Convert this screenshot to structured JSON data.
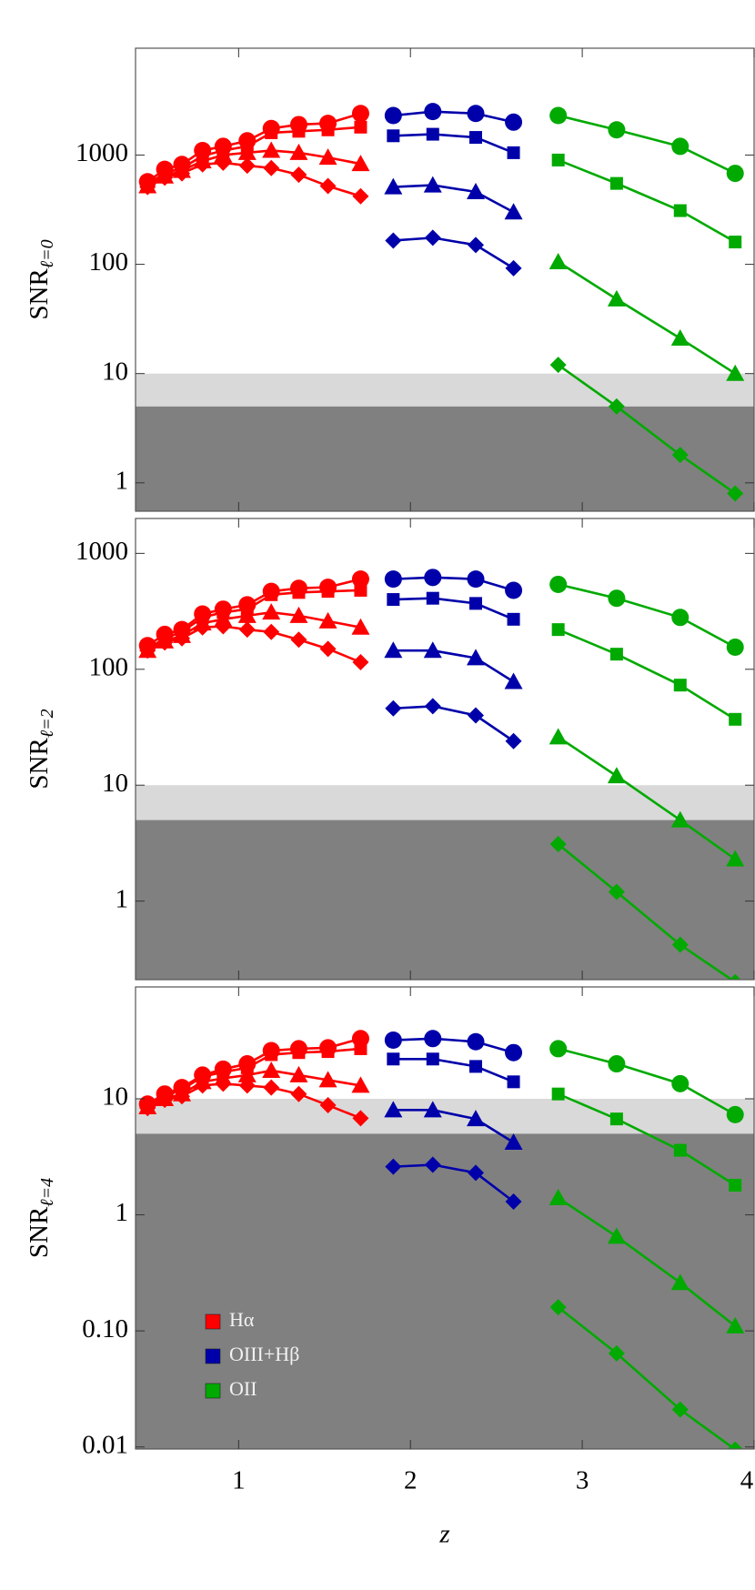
{
  "chart_data": [
    {
      "type": "line",
      "ylog": true,
      "ylabel": "SNR",
      "ylabel_subscript": "ℓ=0",
      "xlim": [
        0.4,
        4.0
      ],
      "xticks": [
        1,
        2,
        3,
        4
      ],
      "ylim": [
        0.55,
        9500
      ],
      "yticks": [
        1,
        10,
        100,
        1000
      ],
      "bands": [
        {
          "range": [
            5,
            10
          ],
          "color": "#d9d9d9"
        },
        {
          "range": [
            0,
            5
          ],
          "color": "#808080"
        }
      ],
      "series": [
        {
          "color": "#ff0000",
          "marker": "circle",
          "x": [
            0.47,
            0.57,
            0.67,
            0.79,
            0.91,
            1.05,
            1.19,
            1.35,
            1.52,
            1.71
          ],
          "values": [
            570,
            740,
            820,
            1100,
            1200,
            1350,
            1750,
            1900,
            1950,
            2400
          ]
        },
        {
          "color": "#ff0000",
          "marker": "square",
          "x": [
            0.47,
            0.57,
            0.67,
            0.79,
            0.91,
            1.05,
            1.19,
            1.35,
            1.52,
            1.71
          ],
          "values": [
            540,
            680,
            760,
            980,
            1100,
            1200,
            1600,
            1650,
            1700,
            1800
          ]
        },
        {
          "color": "#ff0000",
          "marker": "triangle",
          "x": [
            0.47,
            0.57,
            0.67,
            0.79,
            0.91,
            1.05,
            1.19,
            1.35,
            1.52,
            1.71
          ],
          "values": [
            520,
            640,
            720,
            880,
            1000,
            1050,
            1100,
            1050,
            950,
            830
          ]
        },
        {
          "color": "#ff0000",
          "marker": "diamond",
          "x": [
            0.47,
            0.57,
            0.67,
            0.79,
            0.91,
            1.05,
            1.19,
            1.35,
            1.52,
            1.71
          ],
          "values": [
            510,
            620,
            680,
            820,
            850,
            800,
            760,
            660,
            520,
            420
          ]
        },
        {
          "color": "#0000aa",
          "marker": "circle",
          "x": [
            1.9,
            2.13,
            2.38,
            2.6
          ],
          "values": [
            2300,
            2500,
            2400,
            2000
          ]
        },
        {
          "color": "#0000aa",
          "marker": "square",
          "x": [
            1.9,
            2.13,
            2.38,
            2.6
          ],
          "values": [
            1500,
            1550,
            1450,
            1050
          ]
        },
        {
          "color": "#0000aa",
          "marker": "triangle",
          "x": [
            1.9,
            2.13,
            2.38,
            2.6
          ],
          "values": [
            510,
            530,
            460,
            300
          ]
        },
        {
          "color": "#0000aa",
          "marker": "diamond",
          "x": [
            1.9,
            2.13,
            2.38,
            2.6
          ],
          "values": [
            165,
            175,
            150,
            92
          ]
        },
        {
          "color": "#00aa00",
          "marker": "circle",
          "x": [
            2.86,
            3.2,
            3.57,
            3.89
          ],
          "values": [
            2300,
            1700,
            1200,
            680
          ]
        },
        {
          "color": "#00aa00",
          "marker": "square",
          "x": [
            2.86,
            3.2,
            3.57,
            3.89
          ],
          "values": [
            900,
            550,
            310,
            160
          ]
        },
        {
          "color": "#00aa00",
          "marker": "triangle",
          "x": [
            2.86,
            3.2,
            3.57,
            3.89
          ],
          "values": [
            105,
            48,
            21,
            10
          ]
        },
        {
          "color": "#00aa00",
          "marker": "diamond",
          "x": [
            2.86,
            3.2,
            3.57,
            3.89
          ],
          "values": [
            12,
            5,
            1.8,
            0.8
          ]
        }
      ]
    },
    {
      "type": "line",
      "ylog": true,
      "ylabel": "SNR",
      "ylabel_subscript": "ℓ=2",
      "xlim": [
        0.4,
        4.0
      ],
      "xticks": [
        1,
        2,
        3,
        4
      ],
      "ylim": [
        0.21,
        2000
      ],
      "yticks": [
        1,
        10,
        100,
        1000
      ],
      "bands": [
        {
          "range": [
            5,
            10
          ],
          "color": "#d9d9d9"
        },
        {
          "range": [
            0,
            5
          ],
          "color": "#808080"
        }
      ],
      "series": [
        {
          "color": "#ff0000",
          "marker": "circle",
          "x": [
            0.47,
            0.57,
            0.67,
            0.79,
            0.91,
            1.05,
            1.19,
            1.35,
            1.52,
            1.71
          ],
          "values": [
            160,
            200,
            220,
            300,
            330,
            360,
            470,
            500,
            510,
            600
          ]
        },
        {
          "color": "#ff0000",
          "marker": "square",
          "x": [
            0.47,
            0.57,
            0.67,
            0.79,
            0.91,
            1.05,
            1.19,
            1.35,
            1.52,
            1.71
          ],
          "values": [
            150,
            185,
            210,
            280,
            310,
            330,
            440,
            460,
            470,
            480
          ]
        },
        {
          "color": "#ff0000",
          "marker": "triangle",
          "x": [
            0.47,
            0.57,
            0.67,
            0.79,
            0.91,
            1.05,
            1.19,
            1.35,
            1.52,
            1.71
          ],
          "values": [
            145,
            175,
            195,
            250,
            270,
            290,
            310,
            290,
            260,
            230
          ]
        },
        {
          "color": "#ff0000",
          "marker": "diamond",
          "x": [
            0.47,
            0.57,
            0.67,
            0.79,
            0.91,
            1.05,
            1.19,
            1.35,
            1.52,
            1.71
          ],
          "values": [
            145,
            170,
            185,
            230,
            235,
            220,
            210,
            180,
            150,
            115
          ]
        },
        {
          "color": "#0000aa",
          "marker": "circle",
          "x": [
            1.9,
            2.13,
            2.38,
            2.6
          ],
          "values": [
            600,
            620,
            600,
            480
          ]
        },
        {
          "color": "#0000aa",
          "marker": "square",
          "x": [
            1.9,
            2.13,
            2.38,
            2.6
          ],
          "values": [
            400,
            410,
            370,
            270
          ]
        },
        {
          "color": "#0000aa",
          "marker": "triangle",
          "x": [
            1.9,
            2.13,
            2.38,
            2.6
          ],
          "values": [
            145,
            145,
            125,
            78
          ]
        },
        {
          "color": "#0000aa",
          "marker": "diamond",
          "x": [
            1.9,
            2.13,
            2.38,
            2.6
          ],
          "values": [
            46,
            48,
            40,
            24
          ]
        },
        {
          "color": "#00aa00",
          "marker": "circle",
          "x": [
            2.86,
            3.2,
            3.57,
            3.89
          ],
          "values": [
            540,
            410,
            280,
            155
          ]
        },
        {
          "color": "#00aa00",
          "marker": "square",
          "x": [
            2.86,
            3.2,
            3.57,
            3.89
          ],
          "values": [
            220,
            135,
            73,
            37
          ]
        },
        {
          "color": "#00aa00",
          "marker": "triangle",
          "x": [
            2.86,
            3.2,
            3.57,
            3.89
          ],
          "values": [
            26,
            12,
            5,
            2.3
          ]
        },
        {
          "color": "#00aa00",
          "marker": "diamond",
          "x": [
            2.86,
            3.2,
            3.57,
            3.89
          ],
          "values": [
            3.1,
            1.2,
            0.42,
            0.2
          ]
        }
      ]
    },
    {
      "type": "line",
      "ylog": true,
      "ylabel": "SNR",
      "ylabel_subscript": "ℓ=4",
      "xlabel": "z",
      "xlim": [
        0.4,
        4.0
      ],
      "xticks": [
        1,
        2,
        3,
        4
      ],
      "ylim": [
        0.0096,
        92
      ],
      "yticks": [
        {
          "value": 0.01,
          "label": "0.01"
        },
        {
          "value": 0.1,
          "label": "0.10"
        },
        1,
        10
      ],
      "bands": [
        {
          "range": [
            5,
            10
          ],
          "color": "#d9d9d9"
        },
        {
          "range": [
            0,
            5
          ],
          "color": "#808080"
        }
      ],
      "legend": [
        {
          "name": "Hα",
          "color": "#ff0000"
        },
        {
          "name": "OIII+Hβ",
          "color": "#0000aa"
        },
        {
          "name": "OII",
          "color": "#00aa00"
        }
      ],
      "series": [
        {
          "color": "#ff0000",
          "marker": "circle",
          "x": [
            0.47,
            0.57,
            0.67,
            0.79,
            0.91,
            1.05,
            1.19,
            1.35,
            1.52,
            1.71
          ],
          "values": [
            9,
            11,
            12.5,
            16,
            18,
            20,
            26,
            27,
            27.5,
            33
          ]
        },
        {
          "color": "#ff0000",
          "marker": "square",
          "x": [
            0.47,
            0.57,
            0.67,
            0.79,
            0.91,
            1.05,
            1.19,
            1.35,
            1.52,
            1.71
          ],
          "values": [
            8.7,
            10.5,
            12,
            15.5,
            17,
            18.5,
            24,
            25,
            25.5,
            27
          ]
        },
        {
          "color": "#ff0000",
          "marker": "triangle",
          "x": [
            0.47,
            0.57,
            0.67,
            0.79,
            0.91,
            1.05,
            1.19,
            1.35,
            1.52,
            1.71
          ],
          "values": [
            8.5,
            10,
            11,
            14,
            15,
            16,
            17.5,
            16,
            14.5,
            13
          ]
        },
        {
          "color": "#ff0000",
          "marker": "diamond",
          "x": [
            0.47,
            0.57,
            0.67,
            0.79,
            0.91,
            1.05,
            1.19,
            1.35,
            1.52,
            1.71
          ],
          "values": [
            8.3,
            9.8,
            10.5,
            13,
            13.5,
            13,
            12.5,
            11,
            8.8,
            6.8
          ]
        },
        {
          "color": "#0000aa",
          "marker": "circle",
          "x": [
            1.9,
            2.13,
            2.38,
            2.6
          ],
          "values": [
            32,
            33,
            31,
            25
          ]
        },
        {
          "color": "#0000aa",
          "marker": "square",
          "x": [
            1.9,
            2.13,
            2.38,
            2.6
          ],
          "values": [
            22,
            22,
            19,
            14
          ]
        },
        {
          "color": "#0000aa",
          "marker": "triangle",
          "x": [
            1.9,
            2.13,
            2.38,
            2.6
          ],
          "values": [
            8,
            8,
            6.7,
            4.2
          ]
        },
        {
          "color": "#0000aa",
          "marker": "diamond",
          "x": [
            1.9,
            2.13,
            2.38,
            2.6
          ],
          "values": [
            2.6,
            2.7,
            2.3,
            1.3
          ]
        },
        {
          "color": "#00aa00",
          "marker": "circle",
          "x": [
            2.86,
            3.2,
            3.57,
            3.89
          ],
          "values": [
            27,
            20,
            13.5,
            7.3
          ]
        },
        {
          "color": "#00aa00",
          "marker": "square",
          "x": [
            2.86,
            3.2,
            3.57,
            3.89
          ],
          "values": [
            11,
            6.7,
            3.6,
            1.8
          ]
        },
        {
          "color": "#00aa00",
          "marker": "triangle",
          "x": [
            2.86,
            3.2,
            3.57,
            3.89
          ],
          "values": [
            1.4,
            0.65,
            0.26,
            0.11
          ]
        },
        {
          "color": "#00aa00",
          "marker": "diamond",
          "x": [
            2.86,
            3.2,
            3.57,
            3.89
          ],
          "values": [
            0.16,
            0.064,
            0.021,
            0.0095
          ]
        }
      ]
    }
  ]
}
